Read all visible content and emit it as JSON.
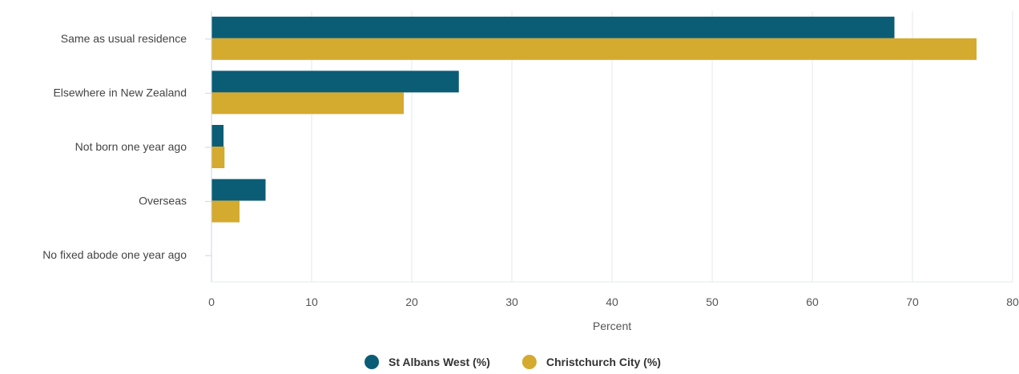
{
  "chart_data": {
    "type": "bar",
    "orientation": "horizontal",
    "categories": [
      "Same as usual residence",
      "Elsewhere in New Zealand",
      "Not born one year ago",
      "Overseas",
      "No fixed abode one year ago"
    ],
    "series": [
      {
        "name": "St Albans West (%)",
        "color": "#0b5c75",
        "values": [
          68.2,
          24.7,
          1.2,
          5.4,
          0.0
        ]
      },
      {
        "name": "Christchurch City (%)",
        "color": "#d4aa2f",
        "values": [
          76.4,
          19.2,
          1.3,
          2.8,
          0.0
        ]
      }
    ],
    "x_ticks": [
      0,
      10,
      20,
      30,
      40,
      50,
      60,
      70,
      80
    ],
    "xlim": [
      0,
      80
    ],
    "xlabel": "Percent",
    "ylabel": "",
    "title": "",
    "grid": true,
    "legend_position": "bottom-center",
    "colors": {
      "gridline": "#e3e8ee",
      "axis": "#ccd6eb"
    }
  }
}
